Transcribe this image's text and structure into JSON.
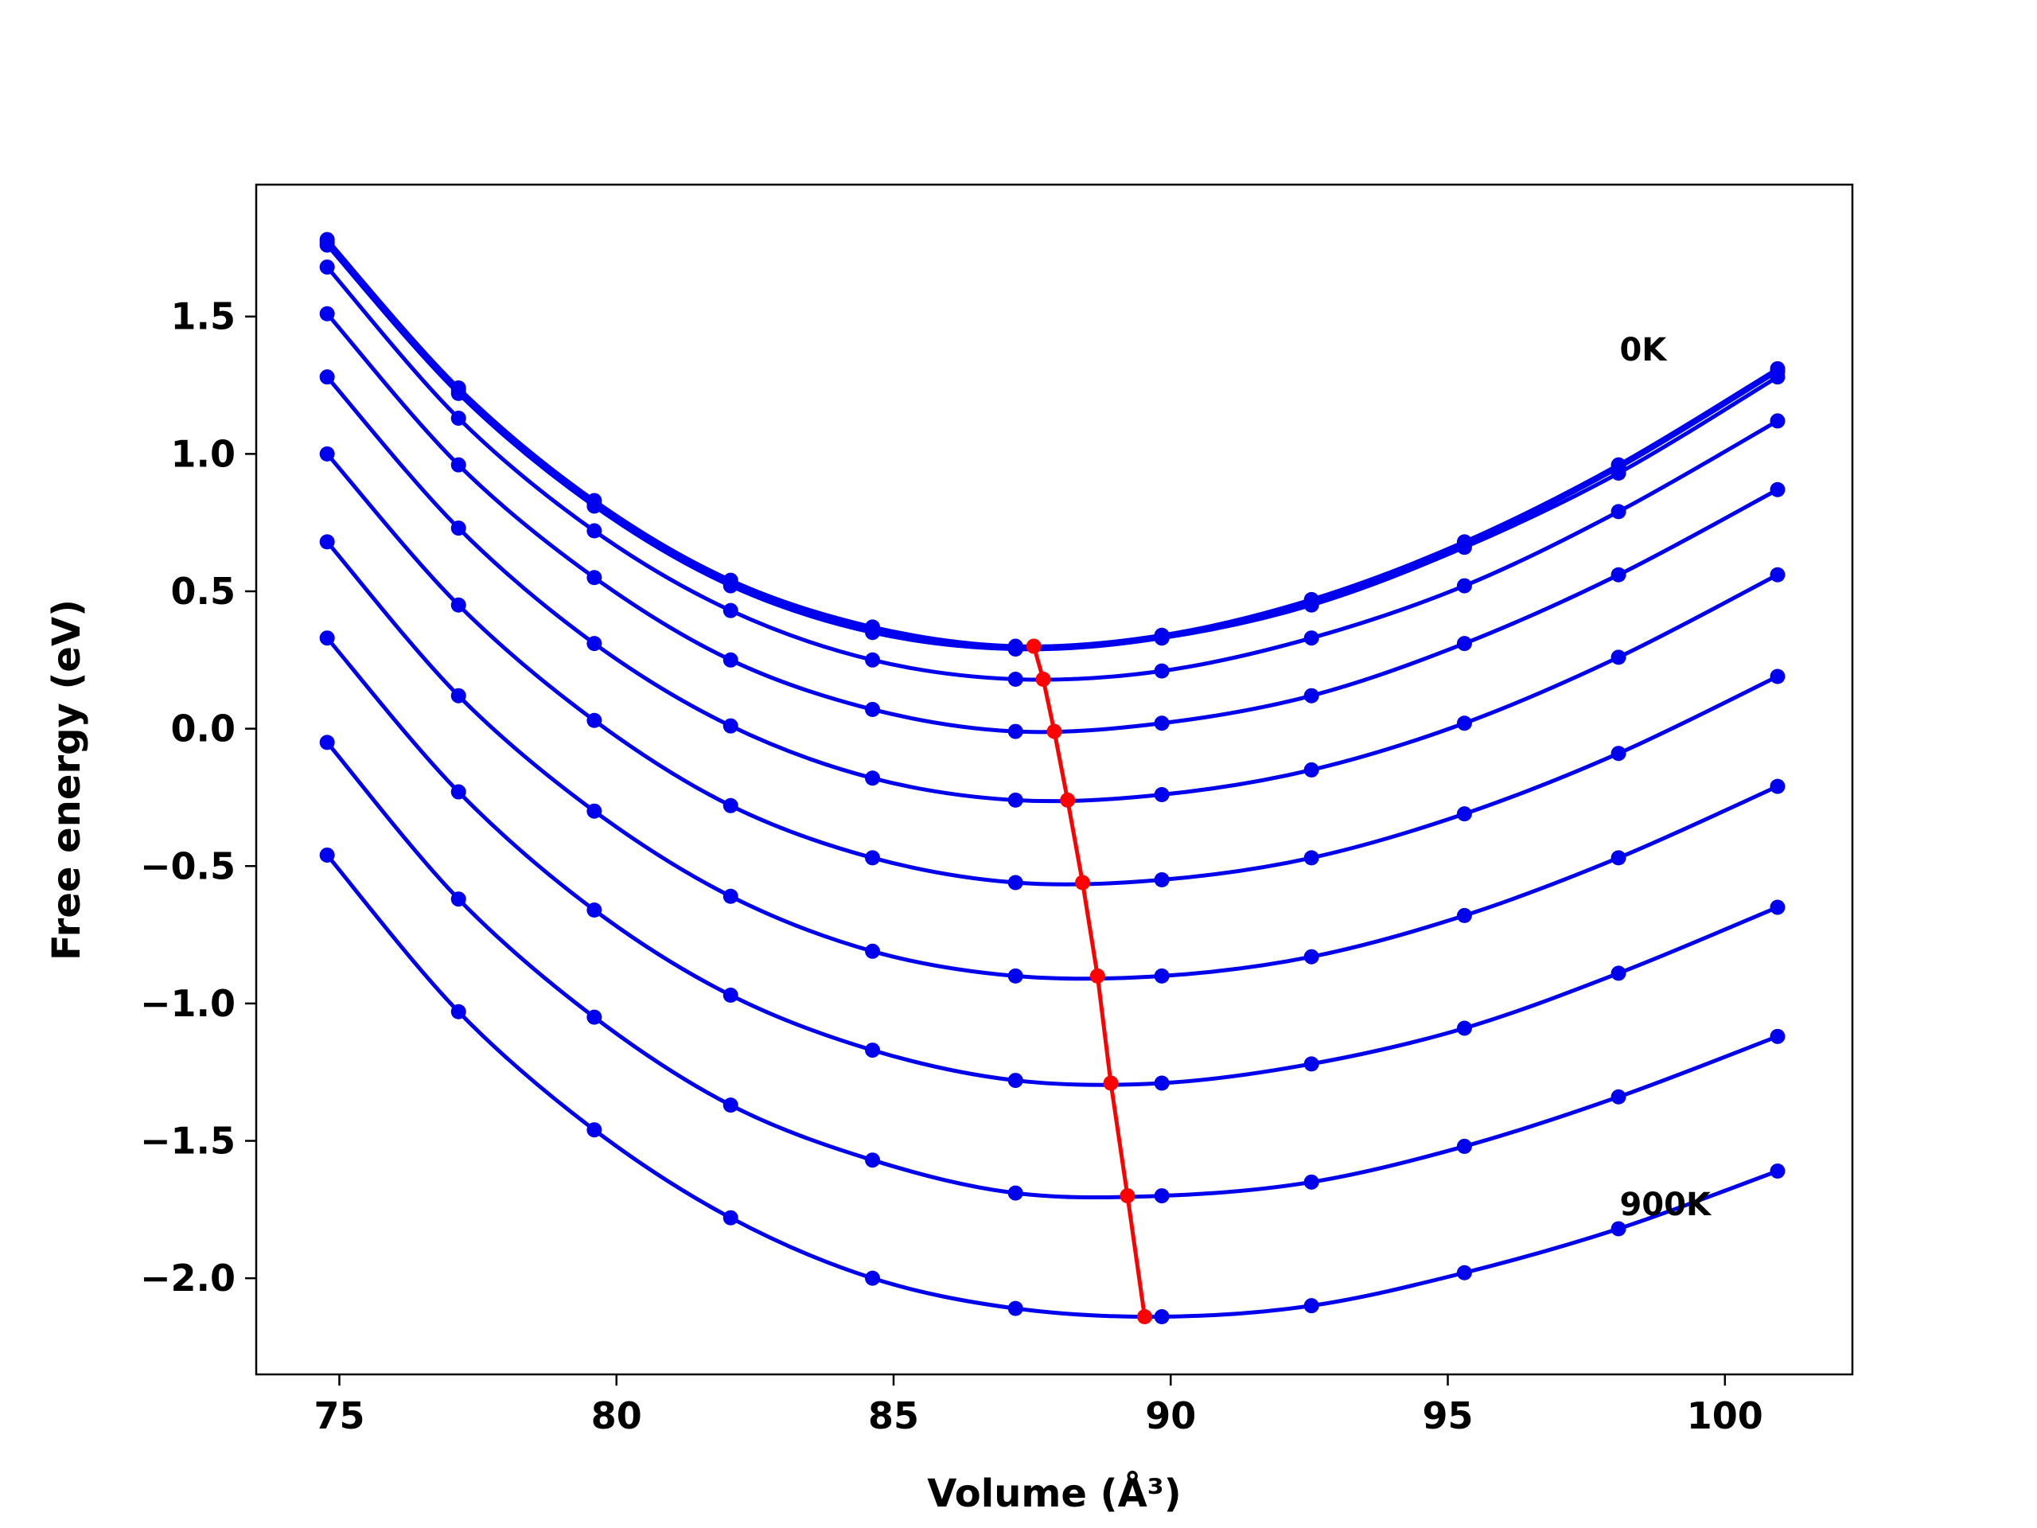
{
  "chart_data": {
    "type": "line",
    "title": "",
    "xlabel": "Volume (Å³)",
    "ylabel": "Free energy (eV)",
    "xlim": [
      73.5,
      102.3
    ],
    "ylim": [
      -2.35,
      1.98
    ],
    "xticks": [
      75,
      80,
      85,
      90,
      95,
      100
    ],
    "xtick_labels": [
      "75",
      "80",
      "85",
      "90",
      "95",
      "100"
    ],
    "yticks": [
      -2.0,
      -1.5,
      -1.0,
      -0.5,
      0.0,
      0.5,
      1.0,
      1.5
    ],
    "ytick_labels": [
      "−2.0",
      "−1.5",
      "−1.0",
      "−0.5",
      "0.0",
      "0.5",
      "1.0",
      "1.5"
    ],
    "grid": false,
    "legend": "none",
    "annotations": [
      {
        "text": "0K",
        "x": 98.1,
        "y": 1.38
      },
      {
        "text": "900K",
        "x": 98.1,
        "y": -1.73
      }
    ],
    "x": [
      74.78,
      77.15,
      79.6,
      82.06,
      84.62,
      87.2,
      89.84,
      92.54,
      95.3,
      98.08,
      100.95
    ],
    "series": [
      {
        "color": "#0000ee",
        "values": [
          1.78,
          1.24,
          0.83,
          0.54,
          0.37,
          0.3,
          0.34,
          0.47,
          0.68,
          0.96,
          1.31
        ]
      },
      {
        "color": "#0000ee",
        "values": [
          1.77,
          1.23,
          0.82,
          0.53,
          0.36,
          0.29,
          0.33,
          0.46,
          0.67,
          0.95,
          1.3
        ]
      },
      {
        "color": "#0000ee",
        "values": [
          1.76,
          1.22,
          0.81,
          0.52,
          0.35,
          0.29,
          0.33,
          0.45,
          0.66,
          0.93,
          1.28
        ]
      },
      {
        "color": "#0000ee",
        "values": [
          1.68,
          1.13,
          0.72,
          0.43,
          0.25,
          0.18,
          0.21,
          0.33,
          0.52,
          0.79,
          1.12
        ]
      },
      {
        "color": "#0000ee",
        "values": [
          1.51,
          0.96,
          0.55,
          0.25,
          0.07,
          -0.01,
          0.02,
          0.12,
          0.31,
          0.56,
          0.87
        ]
      },
      {
        "color": "#0000ee",
        "values": [
          1.28,
          0.73,
          0.31,
          0.01,
          -0.18,
          -0.26,
          -0.24,
          -0.15,
          0.02,
          0.26,
          0.56
        ]
      },
      {
        "color": "#0000ee",
        "values": [
          1.0,
          0.45,
          0.03,
          -0.28,
          -0.47,
          -0.56,
          -0.55,
          -0.47,
          -0.31,
          -0.09,
          0.19
        ]
      },
      {
        "color": "#0000ee",
        "values": [
          0.68,
          0.12,
          -0.3,
          -0.61,
          -0.81,
          -0.9,
          -0.9,
          -0.83,
          -0.68,
          -0.47,
          -0.21
        ]
      },
      {
        "color": "#0000ee",
        "values": [
          0.33,
          -0.23,
          -0.66,
          -0.97,
          -1.17,
          -1.28,
          -1.29,
          -1.22,
          -1.09,
          -0.89,
          -0.65
        ]
      },
      {
        "color": "#0000ee",
        "values": [
          -0.05,
          -0.62,
          -1.05,
          -1.37,
          -1.57,
          -1.69,
          -1.7,
          -1.65,
          -1.52,
          -1.34,
          -1.12
        ]
      },
      {
        "color": "#0000ee",
        "values": [
          -0.46,
          -1.03,
          -1.46,
          -1.78,
          -2.0,
          -2.11,
          -2.14,
          -2.1,
          -1.98,
          -1.82,
          -1.61
        ]
      }
    ],
    "minima_line": {
      "color": "#ff0000",
      "x": [
        87.53,
        87.7,
        87.9,
        88.14,
        88.41,
        88.68,
        88.92,
        89.22,
        89.53
      ],
      "y": [
        0.3,
        0.18,
        -0.01,
        -0.26,
        -0.56,
        -0.9,
        -1.29,
        -1.7,
        -2.14
      ]
    }
  }
}
